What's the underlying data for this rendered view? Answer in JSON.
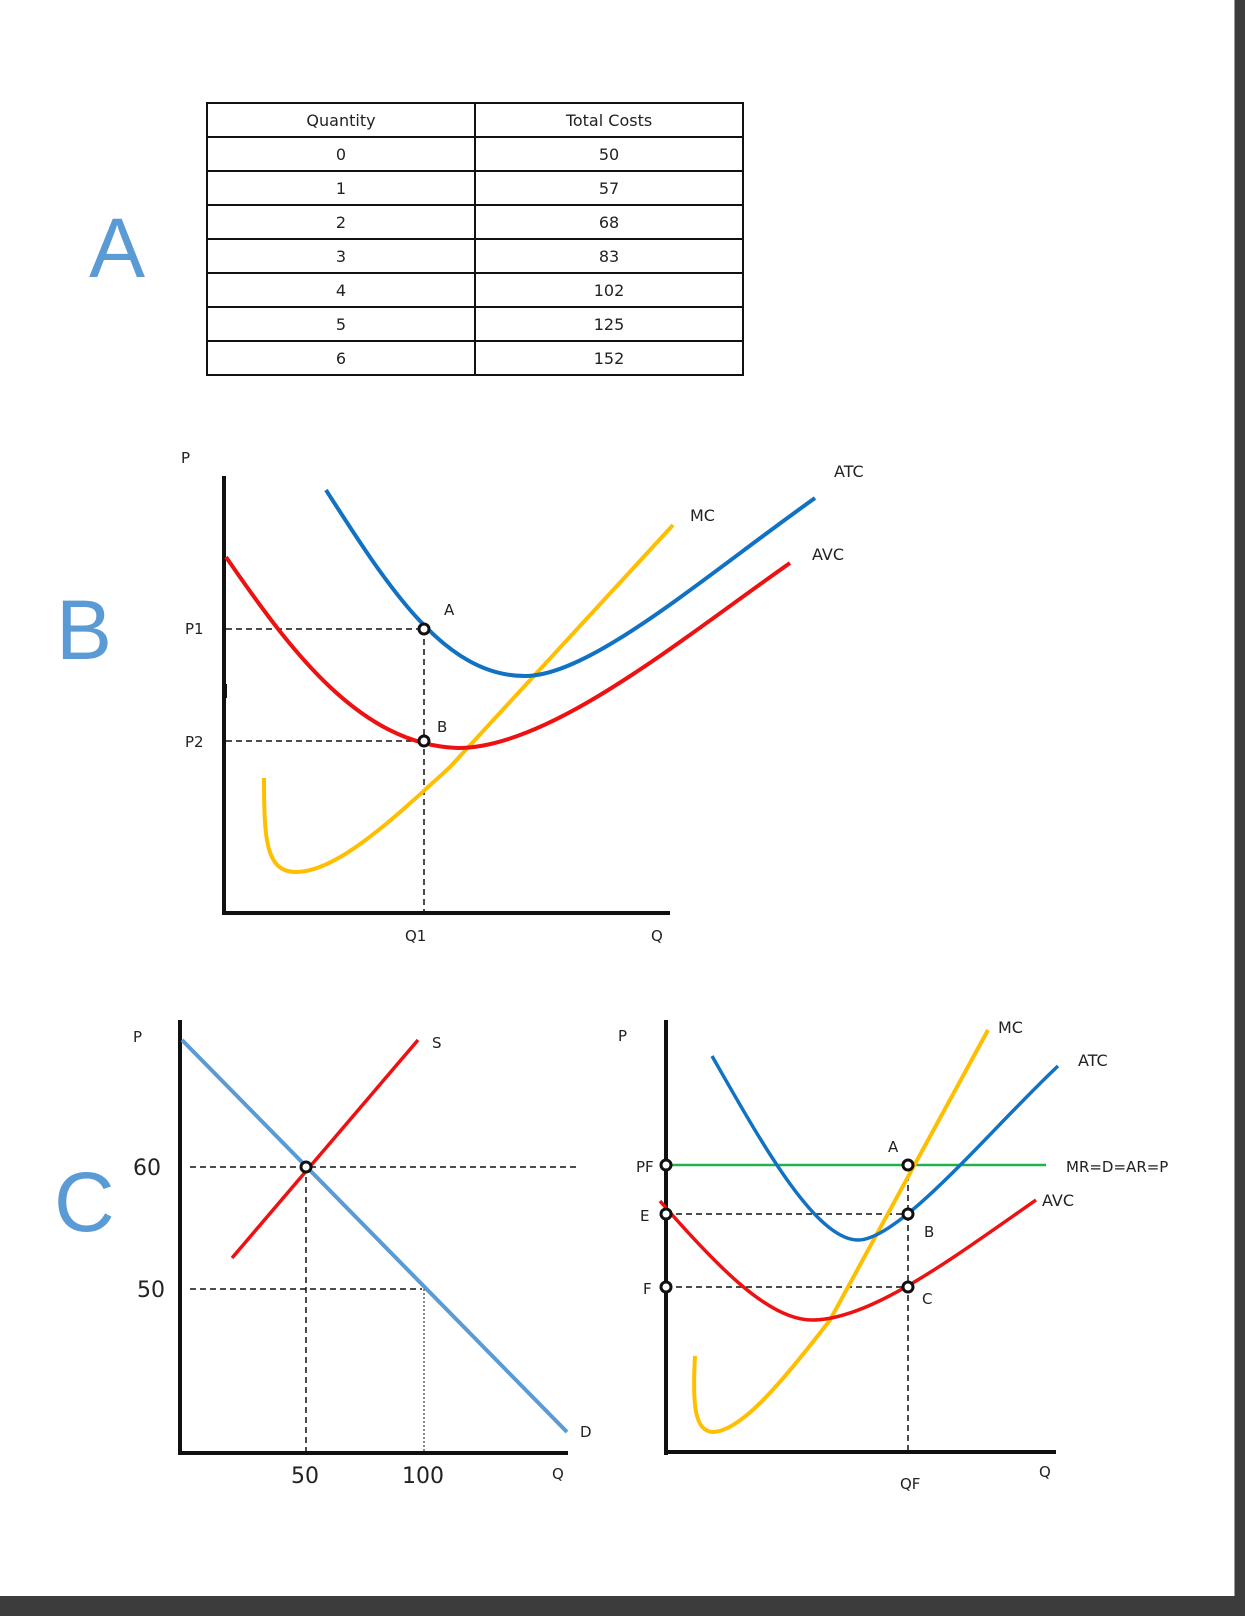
{
  "sections": {
    "a": "A",
    "b": "B",
    "c": "C"
  },
  "colors": {
    "mc": "#ffbf00",
    "atc": "#1172c4",
    "avc": "#ee1111",
    "demand": "#5b9bd5",
    "supply": "#ee1111",
    "mr": "#22b14c",
    "letter": "#5b9bd5"
  },
  "table": {
    "headers": [
      "Quantity",
      "Total Costs"
    ],
    "rows": [
      [
        "0",
        "50"
      ],
      [
        "1",
        "57"
      ],
      [
        "2",
        "68"
      ],
      [
        "3",
        "83"
      ],
      [
        "4",
        "102"
      ],
      [
        "5",
        "125"
      ],
      [
        "6",
        "152"
      ]
    ]
  },
  "chart_data": [
    {
      "type": "line",
      "panel": "B",
      "xlabel": "Q",
      "ylabel": "P",
      "x_ticks": [
        "Q1"
      ],
      "y_ticks": [
        "P1",
        "P2"
      ],
      "series": [
        {
          "name": "MC",
          "shape": "U-shaped, rising steeply"
        },
        {
          "name": "ATC",
          "shape": "U-shaped"
        },
        {
          "name": "AVC",
          "shape": "U-shaped"
        }
      ],
      "points": [
        {
          "label": "A",
          "x": "Q1",
          "y": "P1",
          "on": "ATC"
        },
        {
          "label": "B",
          "x": "Q1",
          "y": "P2",
          "on": "AVC"
        }
      ]
    },
    {
      "type": "line",
      "panel": "C-left",
      "xlabel": "Q",
      "ylabel": "P",
      "x_ticks": [
        "50",
        "100"
      ],
      "y_ticks": [
        "60",
        "50"
      ],
      "series": [
        {
          "name": "S",
          "points": [
            [
              50,
              60
            ]
          ]
        },
        {
          "name": "D",
          "points": [
            [
              50,
              60
            ],
            [
              100,
              50
            ]
          ]
        }
      ],
      "equilibrium": {
        "q": 50,
        "p": 60
      }
    },
    {
      "type": "line",
      "panel": "C-right",
      "xlabel": "Q",
      "ylabel": "P",
      "x_ticks": [
        "QF"
      ],
      "y_ticks": [
        "PF",
        "E",
        "F"
      ],
      "series": [
        {
          "name": "MC"
        },
        {
          "name": "ATC"
        },
        {
          "name": "AVC"
        },
        {
          "name": "MR=D=AR=P",
          "level": "PF"
        }
      ],
      "points": [
        {
          "label": "A",
          "x": "QF",
          "y": "PF"
        },
        {
          "label": "B",
          "x": "QF",
          "y": "E"
        },
        {
          "label": "C",
          "x": "QF",
          "y": "F"
        }
      ]
    }
  ]
}
